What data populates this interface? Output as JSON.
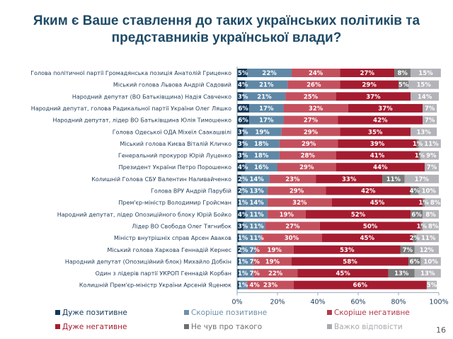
{
  "title_lines": [
    "Яким є Ваше ставлення до таких українських політиків та",
    "представників української влади?"
  ],
  "page_number": "16",
  "chart_data": {
    "type": "bar",
    "orientation": "horizontal",
    "stacked": true,
    "xlim": [
      0,
      100
    ],
    "x_ticks": [
      "0%",
      "20%",
      "40%",
      "60%",
      "80%",
      "100%"
    ],
    "legend_placement": "bottom",
    "categories": [
      "Голова політичної партії Громадянська позиція Анатолій Гриценко",
      "Міський голова Львова Андрій Садовий",
      "Народний депутат (ВО Батьківщина) Надія Савченко",
      "Народний депутат, голова Радикальної партії України Олег Ляшко",
      "Народний депутат, лідер ВО Батьківщина Юлія Тимошенко",
      "Голова Одеської ОДА Міхеїл Саакашвілі",
      "Міський голова Києва Віталій Кличко",
      "Генеральний прокурор Юрій Луценко",
      "Президент України Петро Порошенко",
      "Колишній Голова СБУ Валентин Наливайченко",
      "Голова ВРУ Андрій Парубій",
      "Прем'єр-міністр Володимир Гройсман",
      "Народний депутат, лідер Опозиційного блоку Юрій Бойко",
      "Лідер ВО Свобода Олег Тягнибок",
      "Міністр внутрішніх справ Арсен Аваков",
      "Міський голова Харкова Геннадій Кернес",
      "Народний депутат (Опозиційний блок) Михайло Добкін",
      "Один з лідерів партії УКРОП Геннадій Корбан",
      "Колишній Прем'єр-міністр України Арсеній Яценюк"
    ],
    "series": [
      {
        "name": "Дуже позитивне",
        "color": "#12375a",
        "legend_color": "#12375a",
        "values": [
          5,
          4,
          3,
          6,
          6,
          3,
          3,
          3,
          4,
          2,
          2,
          1,
          4,
          3,
          1,
          2,
          1,
          1,
          1
        ]
      },
      {
        "name": "Скоріше позитивне",
        "color": "#5f88a6",
        "legend_color": "#6f8fa8",
        "values": [
          22,
          21,
          21,
          17,
          17,
          19,
          18,
          18,
          16,
          14,
          13,
          14,
          11,
          11,
          11,
          7,
          7,
          7,
          4
        ]
      },
      {
        "name": "Скоріше негативне",
        "color": "#c4505e",
        "legend_color": "#b2394b",
        "values": [
          24,
          26,
          25,
          32,
          27,
          29,
          29,
          28,
          29,
          23,
          29,
          32,
          19,
          27,
          30,
          19,
          19,
          22,
          23
        ]
      },
      {
        "name": "Дуже негативне",
        "color": "#a51c30",
        "legend_color": "#a51c30",
        "values": [
          27,
          29,
          37,
          37,
          42,
          35,
          39,
          41,
          44,
          33,
          42,
          45,
          52,
          50,
          45,
          53,
          58,
          45,
          66
        ]
      },
      {
        "name": "Не чув про такого",
        "color": "#7a7a7a",
        "legend_color": "#6e6e6e",
        "values": [
          8,
          5,
          0,
          0,
          0,
          0,
          1,
          1,
          0,
          11,
          4,
          1,
          6,
          1,
          2,
          7,
          6,
          13,
          0
        ]
      },
      {
        "name": "Важко відповісти",
        "color": "#b3b3b9",
        "legend_color": "#a8a8ae",
        "values": [
          15,
          15,
          14,
          7,
          7,
          13,
          11,
          9,
          7,
          17,
          10,
          8,
          8,
          8,
          11,
          12,
          10,
          13,
          5
        ]
      }
    ]
  }
}
